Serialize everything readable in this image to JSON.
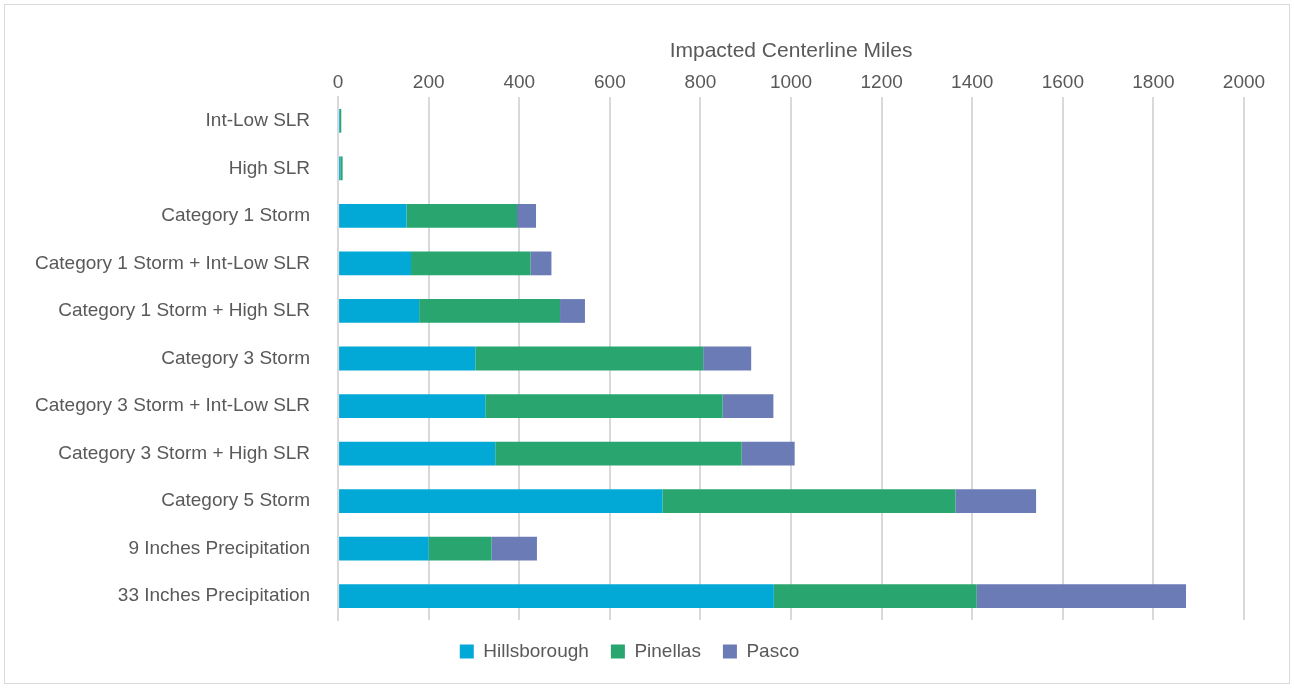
{
  "chart_data": {
    "type": "bar",
    "orientation": "horizontal",
    "stacked": true,
    "xlabel": "Impacted Centerline Miles",
    "categories": [
      "Int-Low SLR",
      "High SLR",
      "Category 1 Storm",
      "Category 1 Storm + Int-Low SLR",
      "Category 1 Storm + High SLR",
      "Category 3 Storm",
      "Category 3 Storm + Int-Low SLR",
      "Category 3 Storm + High SLR",
      "Category 5 Storm",
      "9 Inches Precipitation",
      "33 Inches Precipitation"
    ],
    "series": [
      {
        "name": "Hillsborough",
        "color": "#02a9d6",
        "values": [
          4,
          5,
          151,
          161,
          179,
          303,
          325,
          347,
          716,
          200,
          962
        ]
      },
      {
        "name": "Pinellas",
        "color": "#29a56f",
        "values": [
          3,
          5,
          244,
          264,
          311,
          503,
          524,
          544,
          647,
          139,
          448
        ]
      },
      {
        "name": "Pasco",
        "color": "#6b7bb6",
        "values": [
          0,
          0,
          42,
          46,
          55,
          106,
          112,
          117,
          178,
          100,
          462
        ]
      }
    ],
    "xlim": [
      0,
      2000
    ],
    "xticks": [
      0,
      200,
      400,
      600,
      800,
      1000,
      1200,
      1400,
      1600,
      1800,
      2000
    ],
    "grid": "x",
    "legend": "bottom"
  }
}
